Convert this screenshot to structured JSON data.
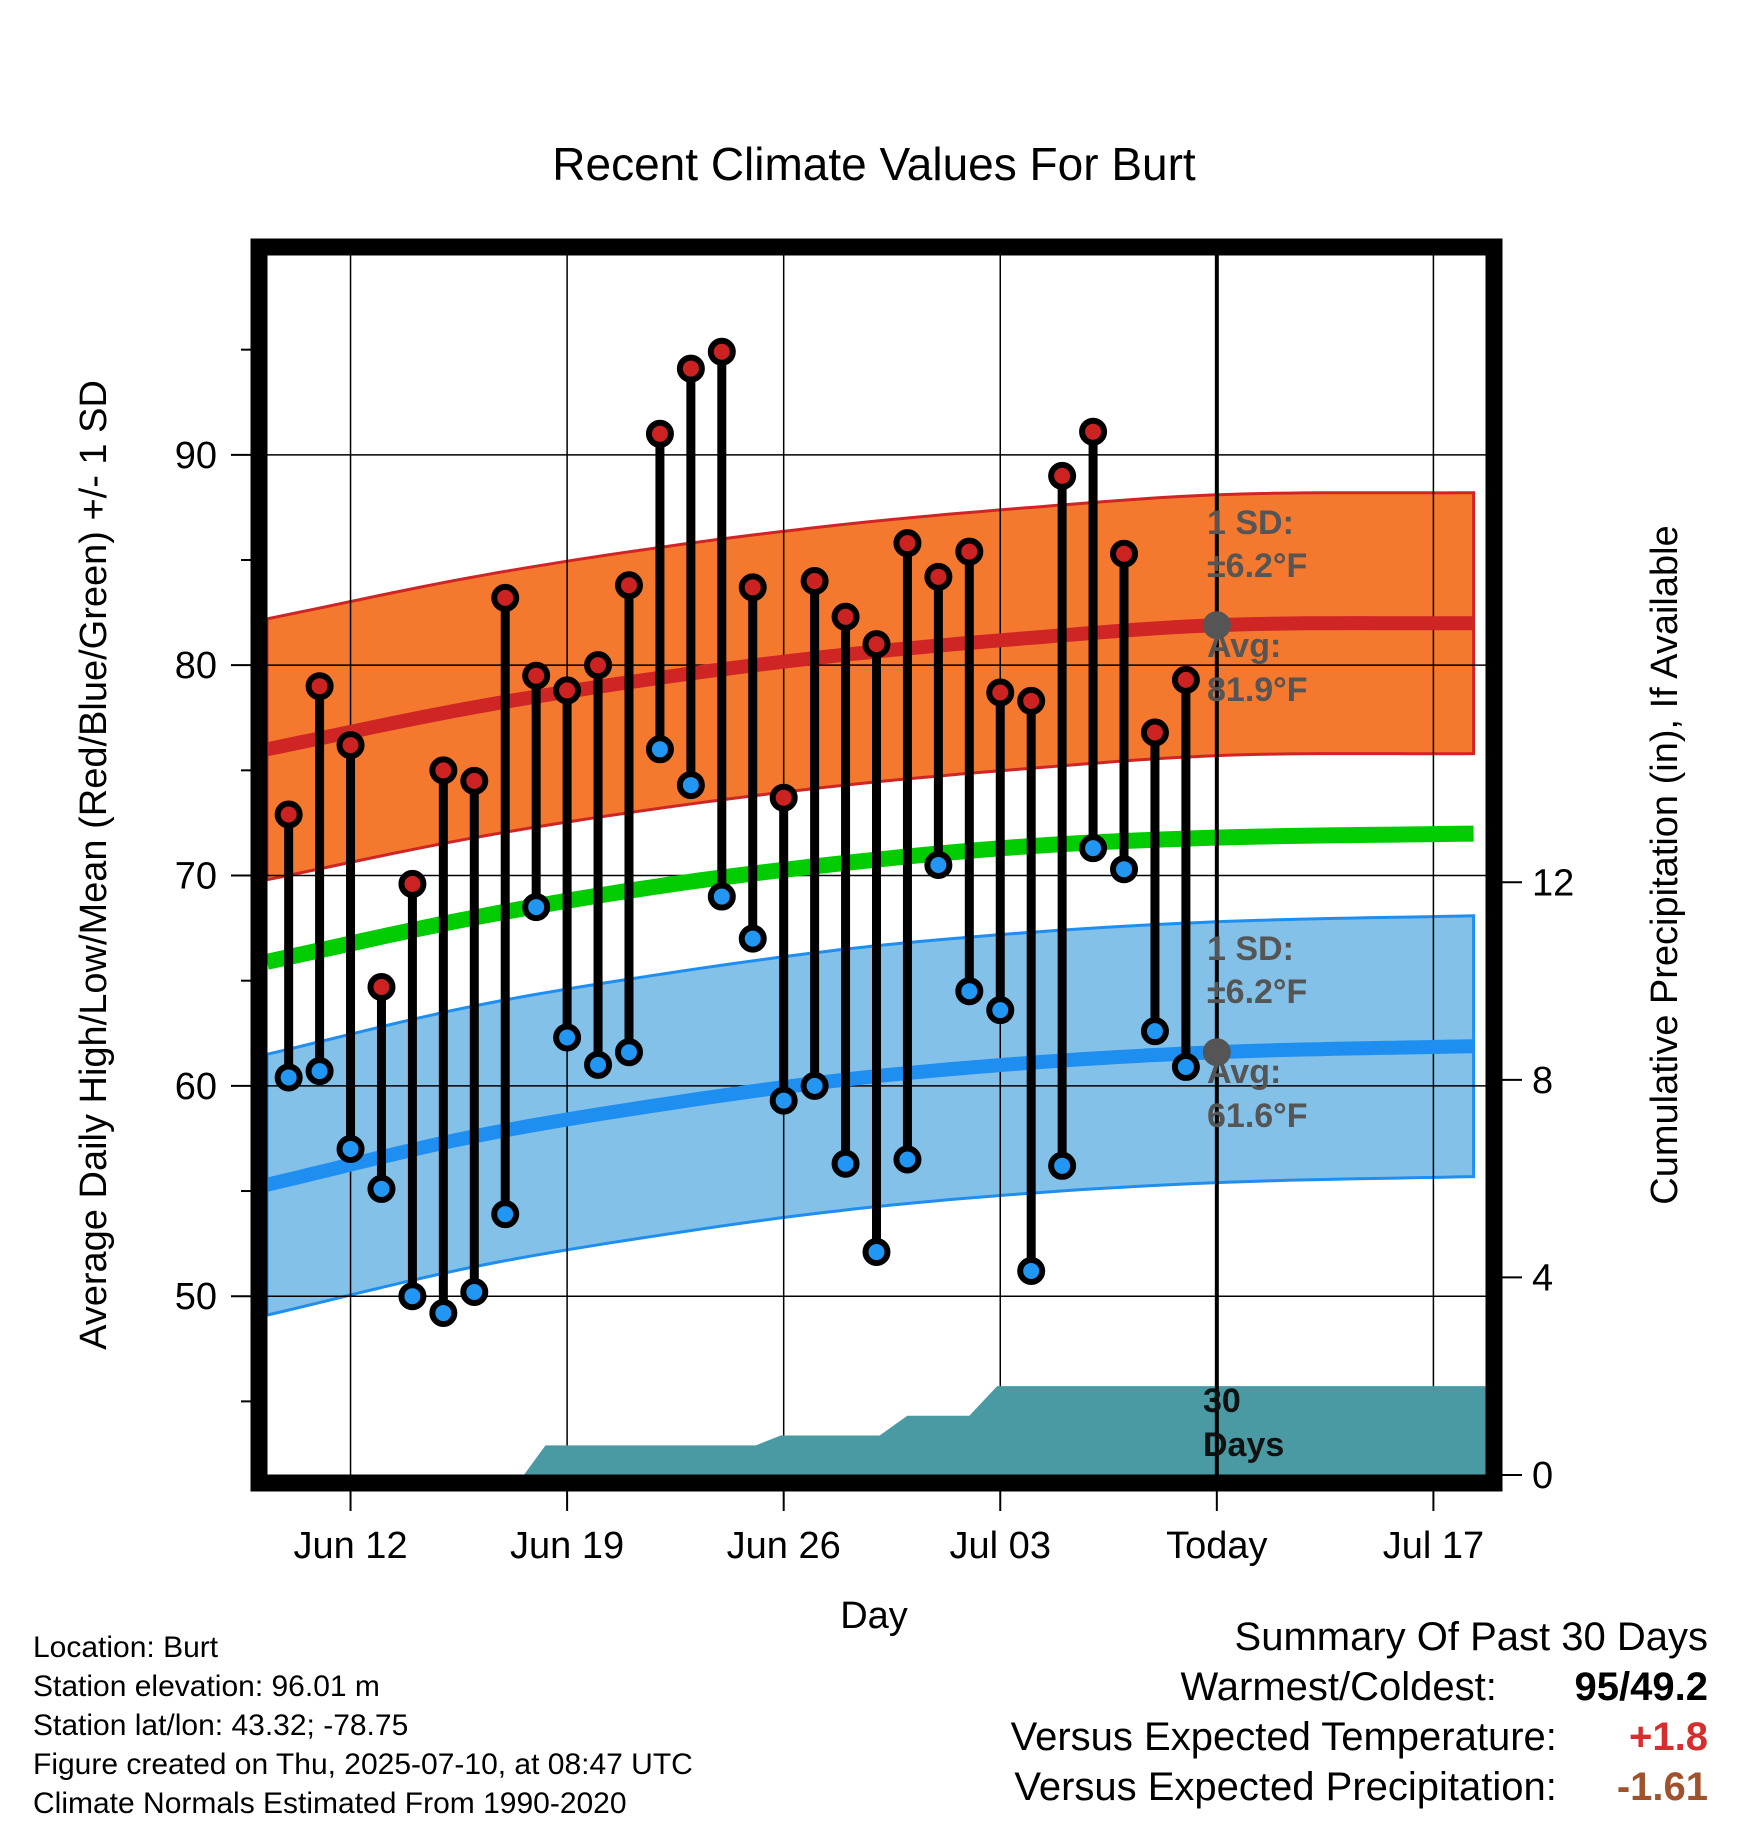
{
  "chart_data": {
    "type": "line",
    "title": "Recent Climate Values For Burt",
    "xlabel": "Day",
    "ylabel_left": "Average Daily High/Low/Mean (Red/Blue/Green) +/- 1 SD",
    "ylabel_right": "Cumulative Precipitation (in), If Available",
    "x_tick_labels": [
      "Jun 12",
      "Jun 19",
      "Jun 26",
      "Jul 03",
      "Today",
      "Jul 17"
    ],
    "x_tick_days": [
      2,
      9,
      16,
      23,
      30,
      37
    ],
    "x_range_days": [
      -0.7,
      38.7
    ],
    "today_day": 30,
    "y_left_ticks": [
      50,
      60,
      70,
      80,
      90
    ],
    "y_left_range": [
      41.5,
      99.5
    ],
    "y_right_ticks": [
      0,
      4,
      8,
      12
    ],
    "y_right_range": [
      0,
      24.7
    ],
    "grid": true,
    "daily_high": [
      72.9,
      79.0,
      76.2,
      64.7,
      69.6,
      75.0,
      74.5,
      83.2,
      79.5,
      78.8,
      80.0,
      83.8,
      91.0,
      94.1,
      94.9,
      83.7,
      73.7,
      84.0,
      82.3,
      81.0,
      85.8,
      84.2,
      85.4,
      78.7,
      78.3,
      89.0,
      91.1,
      85.3,
      76.8,
      79.3
    ],
    "daily_low": [
      60.4,
      60.7,
      57.0,
      55.1,
      50.0,
      49.2,
      50.2,
      53.9,
      68.5,
      62.3,
      61.0,
      61.6,
      76.0,
      74.3,
      69.0,
      67.0,
      59.3,
      60.0,
      56.3,
      52.1,
      56.5,
      70.5,
      64.5,
      63.6,
      51.2,
      56.2,
      71.3,
      70.3,
      62.6,
      60.9
    ],
    "normal_high": {
      "days": [
        -0.7,
        6,
        12,
        18,
        24,
        30,
        38.7
      ],
      "values": [
        76.0,
        78.0,
        79.4,
        80.5,
        81.3,
        81.9,
        82.0
      ]
    },
    "normal_low": {
      "days": [
        -0.7,
        6,
        12,
        18,
        24,
        30,
        38.7
      ],
      "values": [
        55.3,
        57.6,
        59.1,
        60.3,
        61.1,
        61.6,
        61.9
      ]
    },
    "normal_mean": {
      "days": [
        -0.7,
        6,
        12,
        18,
        24,
        30,
        38.7
      ],
      "values": [
        65.9,
        68.0,
        69.5,
        70.6,
        71.4,
        71.8,
        72.0
      ]
    },
    "sd_high": 6.2,
    "sd_low": 6.2,
    "cumulative_precip": {
      "days": [
        7.6,
        8.3,
        15.1,
        15.9,
        19.1,
        20.0,
        22.0,
        22.9,
        38.7
      ],
      "values": [
        0.0,
        0.6,
        0.6,
        0.8,
        0.8,
        1.2,
        1.2,
        1.8,
        1.8
      ]
    },
    "annotations": {
      "high_sd_line1": "1 SD:",
      "high_sd_line2": "±6.2°F",
      "high_avg_line1": "Avg:",
      "high_avg_line2": "81.9°F",
      "low_sd_line1": "1 SD:",
      "low_sd_line2": "±6.2°F",
      "low_avg_line1": "Avg:",
      "low_avg_line2": "61.6°F",
      "days_line1": "30",
      "days_line2": "Days"
    },
    "colors": {
      "high_band": "#f4792e",
      "high_line": "#d02525",
      "low_band": "#84c1e8",
      "low_line": "#1e8ef0",
      "mean_line": "#00cc00",
      "precip": "#4a9aa3",
      "high_dot": "#cc2222",
      "low_dot": "#2196f3",
      "today_dot": "#555555"
    }
  },
  "footer": {
    "location": "Location: Burt",
    "elevation": "Station elevation: 96.01 m",
    "latlon": "Station lat/lon: 43.32; -78.75",
    "created": "Figure created on Thu, 2025-07-10, at 08:47 UTC",
    "normals": "Climate Normals Estimated From 1990-2020"
  },
  "summary": {
    "title": "Summary Of Past 30 Days",
    "warmest_label": "Warmest/Coldest:",
    "warmest_high": "95",
    "warmest_low": "/49.2",
    "temp_label": "Versus Expected Temperature:",
    "temp_value": "+1.8",
    "precip_label": "Versus Expected Precipitation:",
    "precip_value": "-1.61",
    "temp_color": "#d32f2f",
    "precip_color": "#a0522d"
  }
}
